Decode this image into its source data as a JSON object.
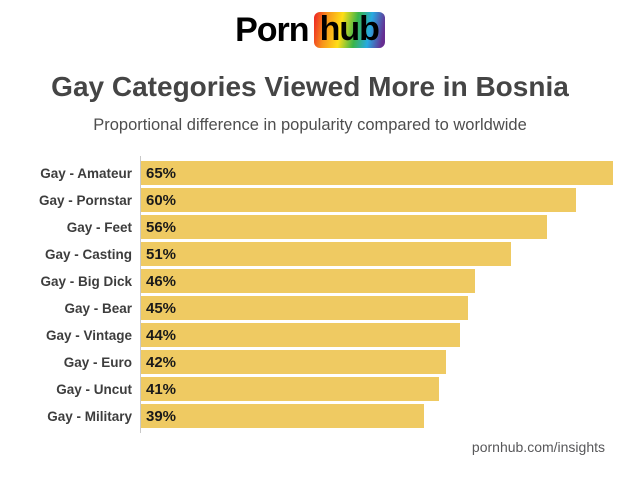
{
  "logo": {
    "porn": "Porn",
    "hub": "hub"
  },
  "chart_data": {
    "type": "bar",
    "orientation": "horizontal",
    "title": "Gay Categories Viewed More in Bosnia",
    "subtitle": "Proportional difference in popularity compared to worldwide",
    "categories": [
      "Gay - Amateur",
      "Gay - Pornstar",
      "Gay - Feet",
      "Gay - Casting",
      "Gay - Big Dick",
      "Gay - Bear",
      "Gay - Vintage",
      "Gay - Euro",
      "Gay - Uncut",
      "Gay - Military"
    ],
    "values": [
      65,
      60,
      56,
      51,
      46,
      45,
      44,
      42,
      41,
      39
    ],
    "value_suffix": "%",
    "value_label_position": "inside-left",
    "xlim": [
      0,
      66
    ],
    "grid": false,
    "legend": false
  },
  "footer": {
    "url": "pornhub.com/insights"
  },
  "colors": {
    "bar": "#efca62",
    "title_text": "#454545",
    "subtitle_text": "#4e4e4e",
    "category_label": "#3d3d3d",
    "value_label": "#1a1a1a",
    "axis_line": "#c9c9c9",
    "footer_text": "#58585a",
    "background": "#ffffff",
    "logo_rainbow": [
      "#ed2024",
      "#f7941d",
      "#ffde17",
      "#39b54a",
      "#27aae1",
      "#662d91"
    ]
  }
}
